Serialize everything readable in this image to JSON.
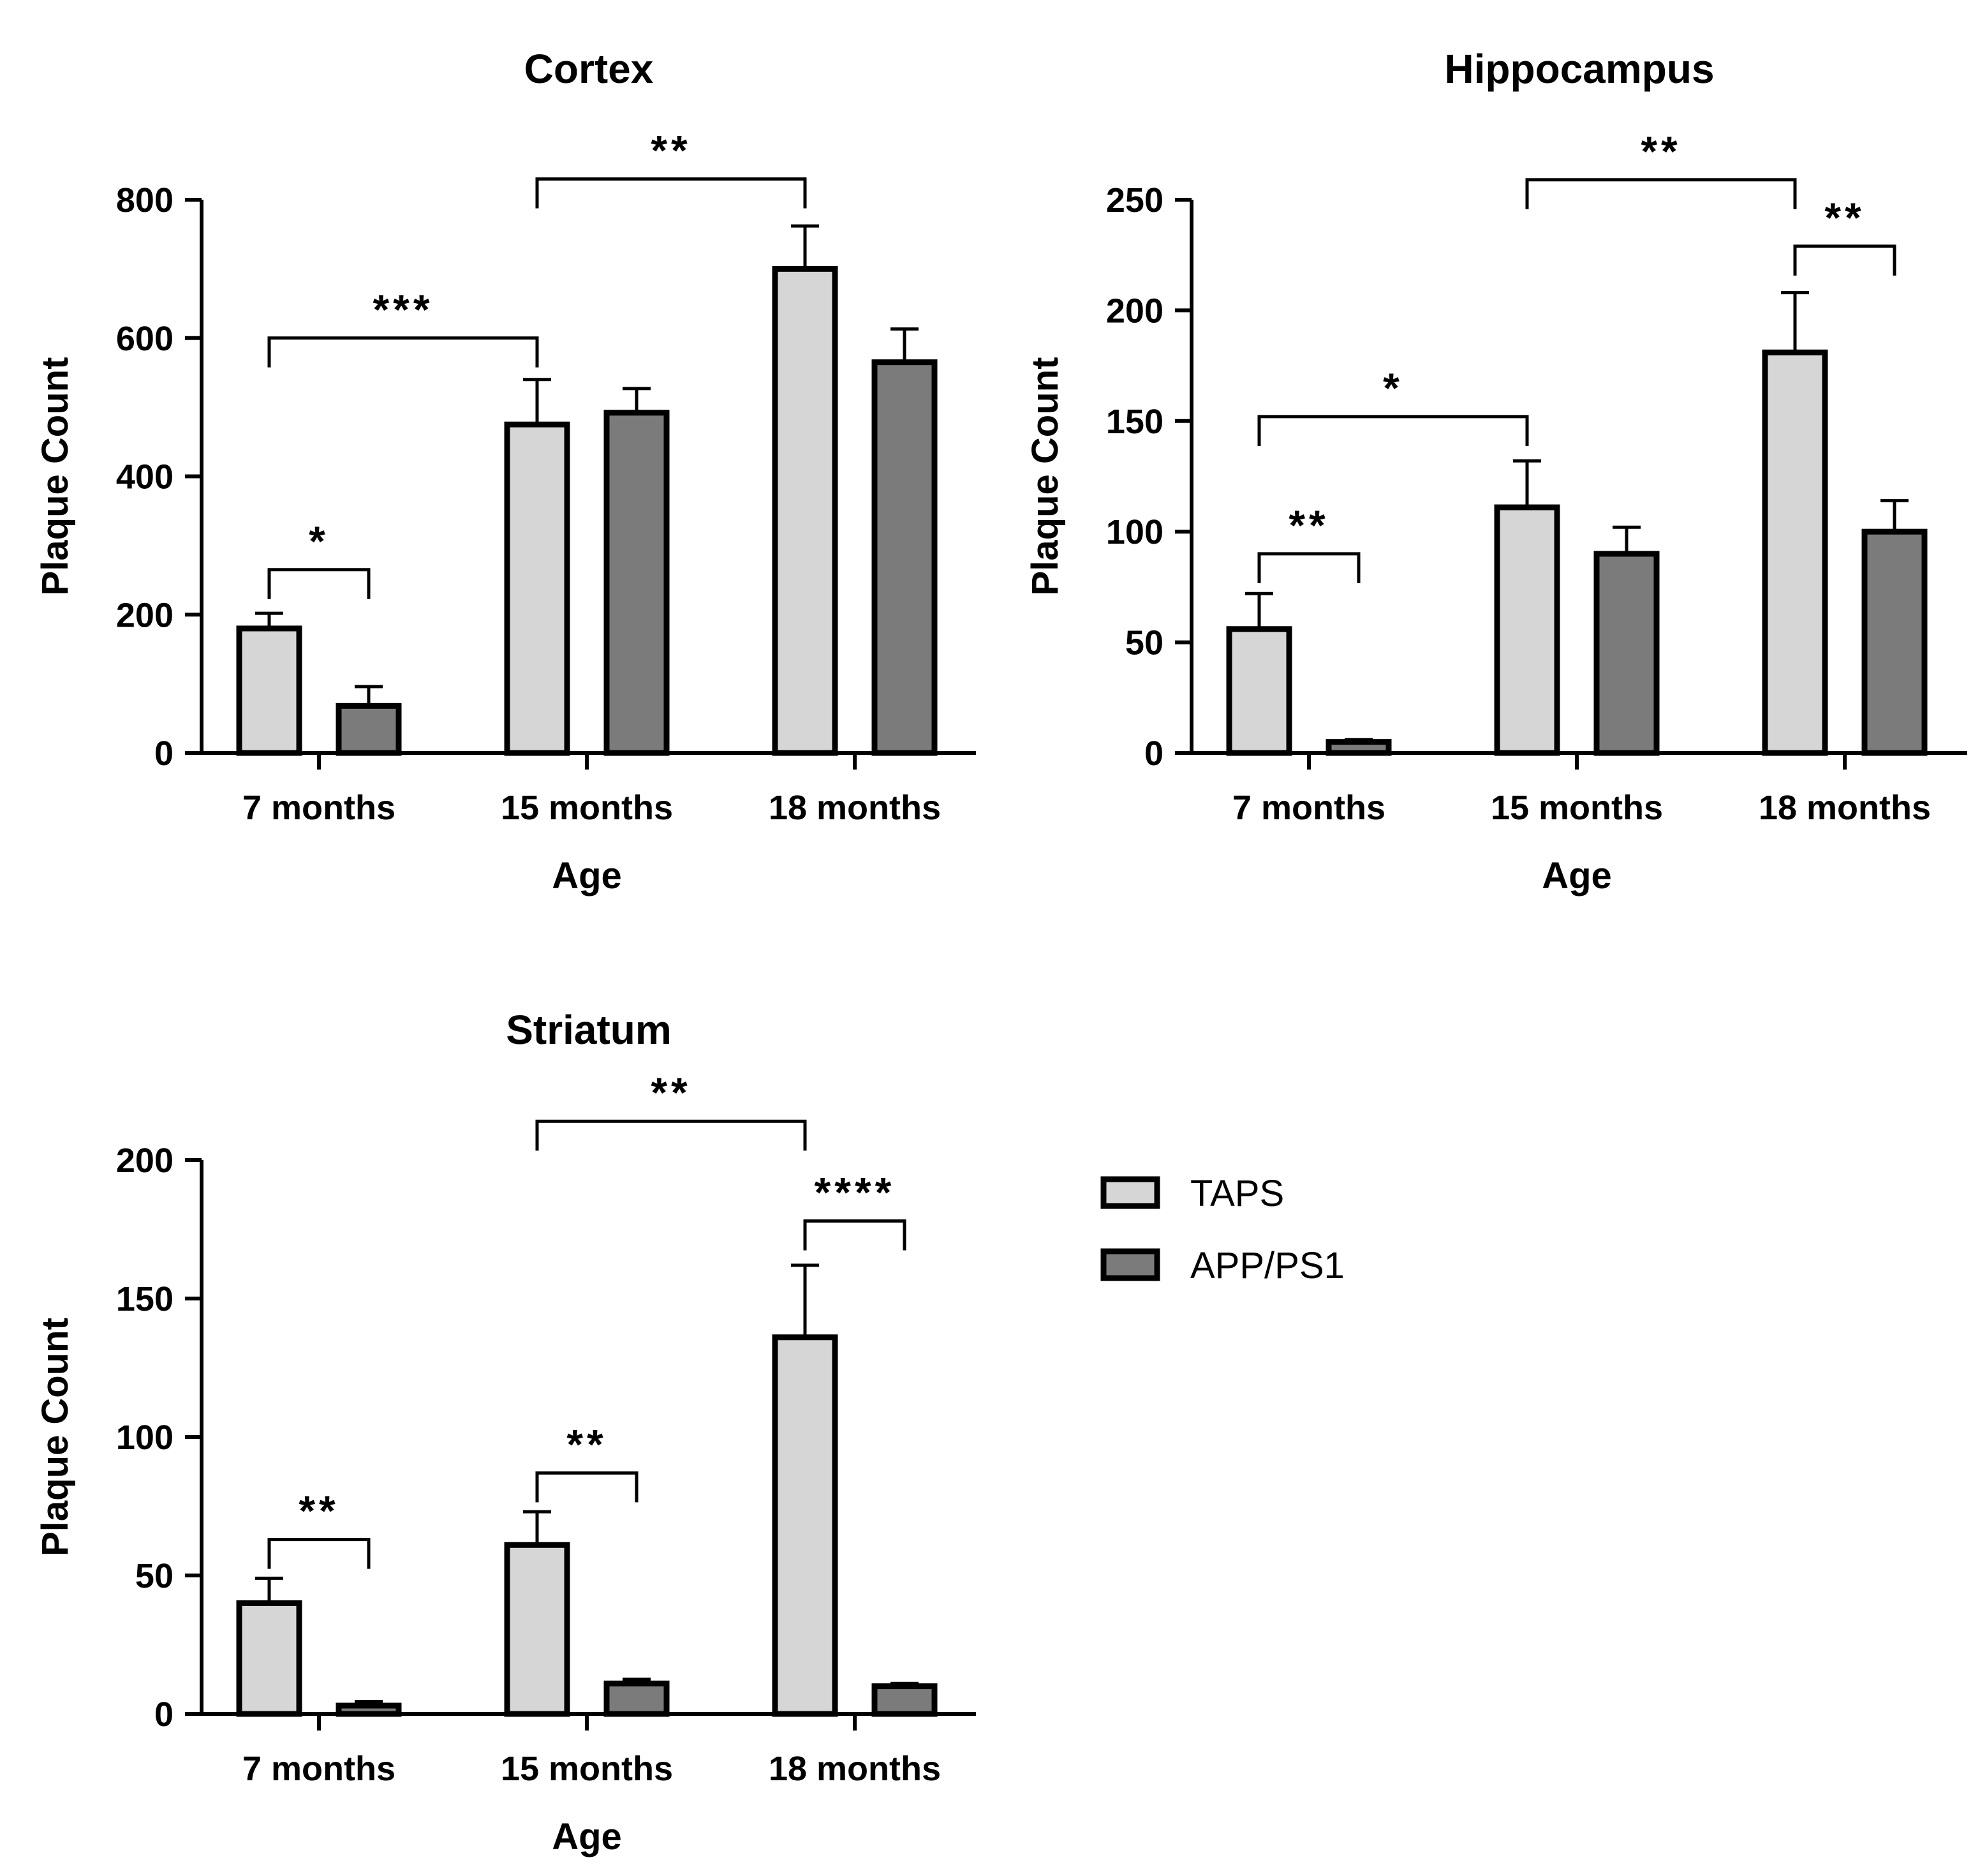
{
  "legend": {
    "items": [
      {
        "label": "TAPS",
        "color": "#d6d6d6"
      },
      {
        "label": "APP/PS1",
        "color": "#7b7b7b"
      }
    ]
  },
  "chart_data": [
    {
      "type": "bar",
      "title": "Cortex",
      "xlabel": "Age",
      "ylabel": "Plaque Count",
      "categories": [
        "7 months",
        "15 months",
        "18 months"
      ],
      "yticks": [
        0,
        200,
        400,
        600,
        800
      ],
      "ylim": [
        0,
        800
      ],
      "series": [
        {
          "name": "TAPS",
          "values": [
            180,
            475,
            700
          ],
          "errors": [
            22,
            65,
            62
          ]
        },
        {
          "name": "APP/PS1",
          "values": [
            68,
            492,
            565
          ],
          "errors": [
            28,
            35,
            48
          ]
        }
      ],
      "significance": [
        {
          "label": "*",
          "from": {
            "category": 0,
            "series": 0
          },
          "to": {
            "category": 0,
            "series": 1
          },
          "level": 265
        },
        {
          "label": "***",
          "from": {
            "category": 0,
            "series": 0
          },
          "to": {
            "category": 1,
            "series": 0
          },
          "level": 600
        },
        {
          "label": "**",
          "from": {
            "category": 1,
            "series": 0
          },
          "to": {
            "category": 2,
            "series": 0
          },
          "level": 830
        }
      ]
    },
    {
      "type": "bar",
      "title": "Hippocampus",
      "xlabel": "Age",
      "ylabel": "Plaque Count",
      "categories": [
        "7 months",
        "15 months",
        "18 months"
      ],
      "yticks": [
        0,
        50,
        100,
        150,
        200,
        250
      ],
      "ylim": [
        0,
        250
      ],
      "series": [
        {
          "name": "TAPS",
          "values": [
            56,
            111,
            181
          ],
          "errors": [
            16,
            21,
            27
          ]
        },
        {
          "name": "APP/PS1",
          "values": [
            5,
            90,
            100
          ],
          "errors": [
            1,
            12,
            14
          ]
        }
      ],
      "significance": [
        {
          "label": "**",
          "from": {
            "category": 0,
            "series": 0
          },
          "to": {
            "category": 0,
            "series": 1
          },
          "level": 90
        },
        {
          "label": "*",
          "from": {
            "category": 0,
            "series": 0
          },
          "to": {
            "category": 1,
            "series": 0
          },
          "level": 152
        },
        {
          "label": "**",
          "from": {
            "category": 1,
            "series": 0
          },
          "to": {
            "category": 2,
            "series": 0
          },
          "level": 259
        },
        {
          "label": "**",
          "from": {
            "category": 2,
            "series": 0
          },
          "to": {
            "category": 2,
            "series": 1
          },
          "level": 229
        }
      ]
    },
    {
      "type": "bar",
      "title": "Striatum",
      "xlabel": "Age",
      "ylabel": "Plaque Count",
      "categories": [
        "7 months",
        "15 months",
        "18 months"
      ],
      "yticks": [
        0,
        50,
        100,
        150,
        200
      ],
      "ylim": [
        0,
        200
      ],
      "series": [
        {
          "name": "TAPS",
          "values": [
            40,
            61,
            136
          ],
          "errors": [
            9,
            12,
            26
          ]
        },
        {
          "name": "APP/PS1",
          "values": [
            3,
            11,
            10
          ],
          "errors": [
            1.5,
            1.5,
            1
          ]
        }
      ],
      "significance": [
        {
          "label": "**",
          "from": {
            "category": 0,
            "series": 0
          },
          "to": {
            "category": 0,
            "series": 1
          },
          "level": 63
        },
        {
          "label": "**",
          "from": {
            "category": 1,
            "series": 0
          },
          "to": {
            "category": 1,
            "series": 1
          },
          "level": 87
        },
        {
          "label": "**",
          "from": {
            "category": 1,
            "series": 0
          },
          "to": {
            "category": 2,
            "series": 0
          },
          "level": 214
        },
        {
          "label": "****",
          "from": {
            "category": 2,
            "series": 0
          },
          "to": {
            "category": 2,
            "series": 1
          },
          "level": 178
        }
      ]
    }
  ]
}
